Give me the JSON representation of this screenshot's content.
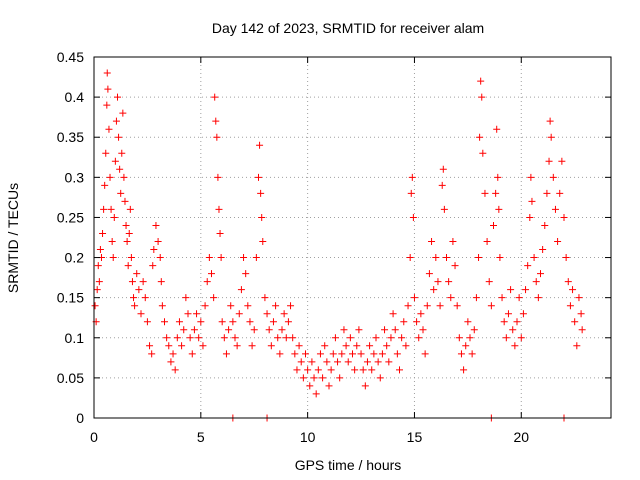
{
  "chart_data": {
    "type": "scatter",
    "title": "Day 142 of 2023, SRMTID for receiver alam",
    "xlabel": "GPS time / hours",
    "ylabel": "SRMTID / TECUs",
    "xlim": [
      0,
      24.2
    ],
    "ylim": [
      0,
      0.45
    ],
    "xticks": [
      0,
      5,
      10,
      15,
      20
    ],
    "xtick_labels": [
      "0",
      "5",
      "10",
      "15",
      "20"
    ],
    "yticks": [
      0,
      0.05,
      0.1,
      0.15,
      0.2,
      0.25,
      0.3,
      0.35,
      0.4,
      0.45
    ],
    "ytick_labels": [
      "0",
      "0.05",
      "0.1",
      "0.15",
      "0.2",
      "0.25",
      "0.3",
      "0.35",
      "0.4",
      "0.45"
    ],
    "grid": true,
    "marker": "+",
    "marker_color": "#ff0000",
    "series": [
      {
        "name": "SRMTID",
        "points": [
          [
            0.05,
            0.14
          ],
          [
            0.1,
            0.12
          ],
          [
            0.15,
            0.16
          ],
          [
            0.2,
            0.19
          ],
          [
            0.25,
            0.17
          ],
          [
            0.3,
            0.21
          ],
          [
            0.35,
            0.2
          ],
          [
            0.4,
            0.23
          ],
          [
            0.45,
            0.26
          ],
          [
            0.5,
            0.29
          ],
          [
            0.55,
            0.33
          ],
          [
            0.6,
            0.39
          ],
          [
            0.62,
            0.43
          ],
          [
            0.65,
            0.41
          ],
          [
            0.7,
            0.36
          ],
          [
            0.75,
            0.3
          ],
          [
            0.8,
            0.26
          ],
          [
            0.85,
            0.22
          ],
          [
            0.9,
            0.2
          ],
          [
            0.95,
            0.25
          ],
          [
            1.0,
            0.32
          ],
          [
            1.05,
            0.37
          ],
          [
            1.1,
            0.4
          ],
          [
            1.15,
            0.35
          ],
          [
            1.2,
            0.31
          ],
          [
            1.25,
            0.28
          ],
          [
            1.3,
            0.33
          ],
          [
            1.35,
            0.38
          ],
          [
            1.4,
            0.3
          ],
          [
            1.45,
            0.27
          ],
          [
            1.5,
            0.24
          ],
          [
            1.55,
            0.22
          ],
          [
            1.6,
            0.19
          ],
          [
            1.65,
            0.23
          ],
          [
            1.7,
            0.26
          ],
          [
            1.75,
            0.2
          ],
          [
            1.8,
            0.17
          ],
          [
            1.85,
            0.15
          ],
          [
            1.9,
            0.14
          ],
          [
            2.0,
            0.18
          ],
          [
            2.1,
            0.16
          ],
          [
            2.2,
            0.13
          ],
          [
            2.3,
            0.17
          ],
          [
            2.4,
            0.15
          ],
          [
            2.5,
            0.12
          ],
          [
            2.6,
            0.09
          ],
          [
            2.7,
            0.08
          ],
          [
            2.75,
            0.19
          ],
          [
            2.8,
            0.21
          ],
          [
            2.9,
            0.24
          ],
          [
            3.0,
            0.22
          ],
          [
            3.1,
            0.2
          ],
          [
            3.15,
            0.17
          ],
          [
            3.2,
            0.14
          ],
          [
            3.3,
            0.12
          ],
          [
            3.4,
            0.1
          ],
          [
            3.5,
            0.09
          ],
          [
            3.6,
            0.07
          ],
          [
            3.7,
            0.08
          ],
          [
            3.8,
            0.06
          ],
          [
            3.9,
            0.1
          ],
          [
            4.0,
            0.12
          ],
          [
            4.1,
            0.09
          ],
          [
            4.2,
            0.11
          ],
          [
            4.3,
            0.15
          ],
          [
            4.4,
            0.13
          ],
          [
            4.5,
            0.1
          ],
          [
            4.6,
            0.08
          ],
          [
            4.7,
            0.11
          ],
          [
            4.8,
            0.13
          ],
          [
            4.9,
            0.1
          ],
          [
            5.0,
            0.12
          ],
          [
            5.1,
            0.09
          ],
          [
            5.2,
            0.14
          ],
          [
            5.3,
            0.17
          ],
          [
            5.4,
            0.2
          ],
          [
            5.5,
            0.18
          ],
          [
            5.6,
            0.15
          ],
          [
            5.65,
            0.4
          ],
          [
            5.7,
            0.37
          ],
          [
            5.75,
            0.35
          ],
          [
            5.8,
            0.3
          ],
          [
            5.85,
            0.26
          ],
          [
            5.9,
            0.23
          ],
          [
            5.95,
            0.2
          ],
          [
            6.0,
            0.12
          ],
          [
            6.1,
            0.1
          ],
          [
            6.2,
            0.08
          ],
          [
            6.3,
            0.11
          ],
          [
            6.4,
            0.14
          ],
          [
            6.5,
            0.12
          ],
          [
            6.6,
            0.1
          ],
          [
            6.7,
            0.09
          ],
          [
            6.8,
            0.13
          ],
          [
            6.9,
            0.16
          ],
          [
            7.0,
            0.2
          ],
          [
            7.1,
            0.18
          ],
          [
            7.2,
            0.14
          ],
          [
            7.3,
            0.12
          ],
          [
            7.4,
            0.09
          ],
          [
            7.5,
            0.11
          ],
          [
            7.6,
            0.2
          ],
          [
            7.7,
            0.3
          ],
          [
            7.75,
            0.34
          ],
          [
            7.8,
            0.28
          ],
          [
            7.85,
            0.25
          ],
          [
            7.9,
            0.22
          ],
          [
            8.0,
            0.15
          ],
          [
            8.1,
            0.13
          ],
          [
            8.2,
            0.11
          ],
          [
            8.3,
            0.09
          ],
          [
            8.4,
            0.12
          ],
          [
            8.5,
            0.14
          ],
          [
            8.6,
            0.1
          ],
          [
            8.7,
            0.08
          ],
          [
            8.8,
            0.11
          ],
          [
            8.9,
            0.13
          ],
          [
            9.0,
            0.1
          ],
          [
            9.1,
            0.12
          ],
          [
            9.2,
            0.14
          ],
          [
            9.3,
            0.1
          ],
          [
            9.4,
            0.08
          ],
          [
            9.5,
            0.06
          ],
          [
            9.6,
            0.09
          ],
          [
            9.7,
            0.07
          ],
          [
            9.8,
            0.05
          ],
          [
            9.9,
            0.08
          ],
          [
            10.0,
            0.06
          ],
          [
            10.1,
            0.04
          ],
          [
            10.2,
            0.07
          ],
          [
            10.3,
            0.05
          ],
          [
            10.4,
            0.03
          ],
          [
            10.5,
            0.06
          ],
          [
            10.6,
            0.08
          ],
          [
            10.7,
            0.05
          ],
          [
            10.8,
            0.09
          ],
          [
            10.9,
            0.07
          ],
          [
            11.0,
            0.04
          ],
          [
            11.1,
            0.06
          ],
          [
            11.2,
            0.08
          ],
          [
            11.3,
            0.1
          ],
          [
            11.4,
            0.07
          ],
          [
            11.5,
            0.05
          ],
          [
            11.6,
            0.08
          ],
          [
            11.7,
            0.11
          ],
          [
            11.8,
            0.09
          ],
          [
            11.9,
            0.07
          ],
          [
            12.0,
            0.1
          ],
          [
            12.1,
            0.08
          ],
          [
            12.2,
            0.06
          ],
          [
            12.3,
            0.09
          ],
          [
            12.4,
            0.11
          ],
          [
            12.5,
            0.08
          ],
          [
            12.6,
            0.06
          ],
          [
            12.7,
            0.04
          ],
          [
            12.8,
            0.07
          ],
          [
            12.9,
            0.09
          ],
          [
            13.0,
            0.06
          ],
          [
            13.1,
            0.08
          ],
          [
            13.2,
            0.1
          ],
          [
            13.3,
            0.07
          ],
          [
            13.4,
            0.05
          ],
          [
            13.5,
            0.08
          ],
          [
            13.6,
            0.11
          ],
          [
            13.7,
            0.09
          ],
          [
            13.8,
            0.07
          ],
          [
            13.9,
            0.1
          ],
          [
            14.0,
            0.13
          ],
          [
            14.1,
            0.11
          ],
          [
            14.2,
            0.08
          ],
          [
            14.3,
            0.06
          ],
          [
            14.4,
            0.1
          ],
          [
            14.5,
            0.12
          ],
          [
            14.6,
            0.09
          ],
          [
            14.7,
            0.14
          ],
          [
            14.8,
            0.2
          ],
          [
            14.85,
            0.28
          ],
          [
            14.9,
            0.3
          ],
          [
            14.95,
            0.25
          ],
          [
            15.0,
            0.15
          ],
          [
            15.1,
            0.12
          ],
          [
            15.2,
            0.1
          ],
          [
            15.3,
            0.13
          ],
          [
            15.4,
            0.11
          ],
          [
            15.5,
            0.08
          ],
          [
            15.6,
            0.14
          ],
          [
            15.7,
            0.18
          ],
          [
            15.8,
            0.22
          ],
          [
            15.9,
            0.16
          ],
          [
            16.0,
            0.2
          ],
          [
            16.1,
            0.17
          ],
          [
            16.2,
            0.14
          ],
          [
            16.3,
            0.29
          ],
          [
            16.35,
            0.31
          ],
          [
            16.4,
            0.26
          ],
          [
            16.5,
            0.2
          ],
          [
            16.6,
            0.17
          ],
          [
            16.7,
            0.15
          ],
          [
            16.8,
            0.22
          ],
          [
            16.9,
            0.19
          ],
          [
            17.0,
            0.14
          ],
          [
            17.1,
            0.1
          ],
          [
            17.2,
            0.08
          ],
          [
            17.3,
            0.06
          ],
          [
            17.4,
            0.09
          ],
          [
            17.5,
            0.12
          ],
          [
            17.6,
            0.1
          ],
          [
            17.7,
            0.08
          ],
          [
            17.8,
            0.11
          ],
          [
            17.9,
            0.15
          ],
          [
            18.0,
            0.2
          ],
          [
            18.05,
            0.35
          ],
          [
            18.1,
            0.42
          ],
          [
            18.15,
            0.4
          ],
          [
            18.2,
            0.33
          ],
          [
            18.3,
            0.28
          ],
          [
            18.4,
            0.22
          ],
          [
            18.5,
            0.17
          ],
          [
            18.6,
            0.14
          ],
          [
            18.7,
            0.24
          ],
          [
            18.8,
            0.28
          ],
          [
            18.85,
            0.36
          ],
          [
            18.9,
            0.3
          ],
          [
            18.95,
            0.26
          ],
          [
            19.0,
            0.2
          ],
          [
            19.1,
            0.15
          ],
          [
            19.2,
            0.12
          ],
          [
            19.3,
            0.1
          ],
          [
            19.4,
            0.13
          ],
          [
            19.5,
            0.16
          ],
          [
            19.6,
            0.11
          ],
          [
            19.7,
            0.09
          ],
          [
            19.8,
            0.12
          ],
          [
            19.9,
            0.15
          ],
          [
            20.0,
            0.1
          ],
          [
            20.1,
            0.13
          ],
          [
            20.2,
            0.16
          ],
          [
            20.3,
            0.19
          ],
          [
            20.4,
            0.25
          ],
          [
            20.45,
            0.3
          ],
          [
            20.5,
            0.27
          ],
          [
            20.6,
            0.2
          ],
          [
            20.7,
            0.17
          ],
          [
            20.8,
            0.15
          ],
          [
            20.9,
            0.18
          ],
          [
            21.0,
            0.21
          ],
          [
            21.1,
            0.24
          ],
          [
            21.2,
            0.28
          ],
          [
            21.3,
            0.32
          ],
          [
            21.35,
            0.37
          ],
          [
            21.4,
            0.35
          ],
          [
            21.5,
            0.3
          ],
          [
            21.6,
            0.26
          ],
          [
            21.7,
            0.22
          ],
          [
            21.8,
            0.28
          ],
          [
            21.9,
            0.32
          ],
          [
            22.0,
            0.25
          ],
          [
            22.1,
            0.2
          ],
          [
            22.2,
            0.17
          ],
          [
            22.3,
            0.14
          ],
          [
            22.4,
            0.16
          ],
          [
            22.5,
            0.12
          ],
          [
            22.6,
            0.09
          ],
          [
            22.7,
            0.15
          ],
          [
            22.8,
            0.13
          ],
          [
            22.85,
            0.11
          ],
          [
            6.5,
            0.0
          ],
          [
            8.1,
            0.0
          ],
          [
            18.6,
            0.0
          ],
          [
            22.0,
            0.0
          ]
        ]
      }
    ]
  }
}
